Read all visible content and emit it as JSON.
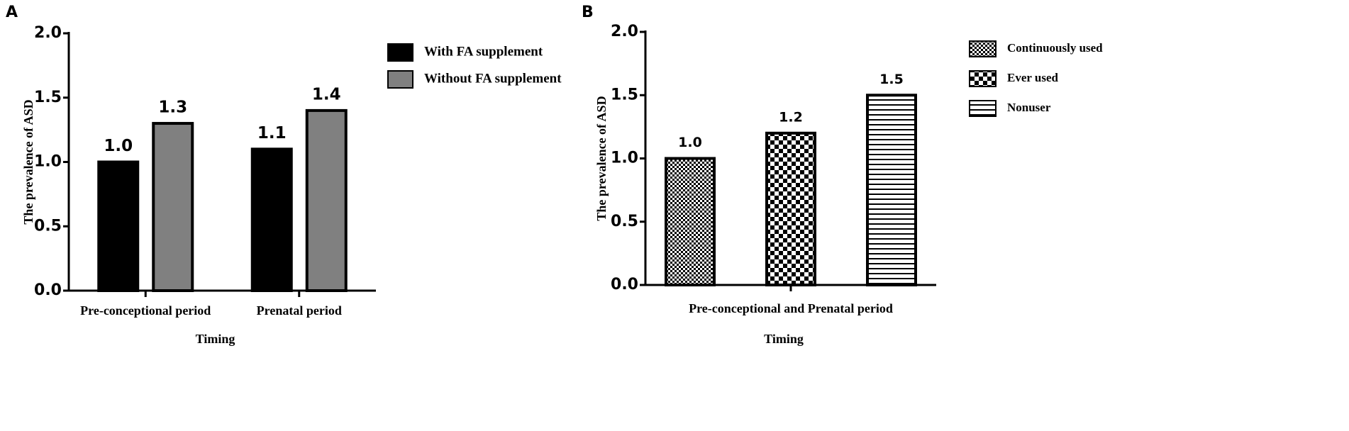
{
  "chart_data": [
    {
      "type": "bar",
      "panel": "A",
      "ylabel": "The prevalence of ASD",
      "xlabel": "Timing",
      "categories": [
        "Pre-conceptional period",
        "Prenatal period"
      ],
      "series": [
        {
          "name": "With FA supplement",
          "color": "#000000",
          "values": [
            1.0,
            1.1
          ],
          "value_labels": [
            "1.0",
            "1.1"
          ]
        },
        {
          "name": "Without FA supplement",
          "color": "#808080",
          "values": [
            1.3,
            1.4
          ],
          "value_labels": [
            "1.3",
            "1.4"
          ]
        }
      ],
      "ylim": [
        0,
        2
      ],
      "yticks": [
        {
          "value": 0,
          "label": "0.0"
        },
        {
          "value": 0.5,
          "label": "0.5"
        },
        {
          "value": 1,
          "label": "1.0"
        },
        {
          "value": 1.5,
          "label": "1.5"
        },
        {
          "value": 2,
          "label": "2.0"
        }
      ],
      "grid": false,
      "legend": "right"
    },
    {
      "type": "bar",
      "panel": "B",
      "ylabel": "The prevalence of ASD",
      "xlabel": "Timing",
      "categories": [
        "Pre-conceptional and Prenatal period"
      ],
      "series": [
        {
          "name": "Continuously used",
          "color": "#000000",
          "pattern": "fine-checker",
          "values": [
            1.0
          ],
          "value_labels": [
            "1.0"
          ]
        },
        {
          "name": "Ever used",
          "color": "#000000",
          "pattern": "coarse-checker",
          "values": [
            1.2
          ],
          "value_labels": [
            "1.2"
          ]
        },
        {
          "name": "Nonuser",
          "color": "#000000",
          "pattern": "horizontal-stripes",
          "values": [
            1.5
          ],
          "value_labels": [
            "1.5"
          ]
        }
      ],
      "ylim": [
        0,
        2
      ],
      "yticks": [
        {
          "value": 0,
          "label": "0.0"
        },
        {
          "value": 0.5,
          "label": "0.5"
        },
        {
          "value": 1,
          "label": "1.0"
        },
        {
          "value": 1.5,
          "label": "1.5"
        },
        {
          "value": 2,
          "label": "2.0"
        }
      ],
      "grid": false,
      "legend": "right"
    }
  ]
}
